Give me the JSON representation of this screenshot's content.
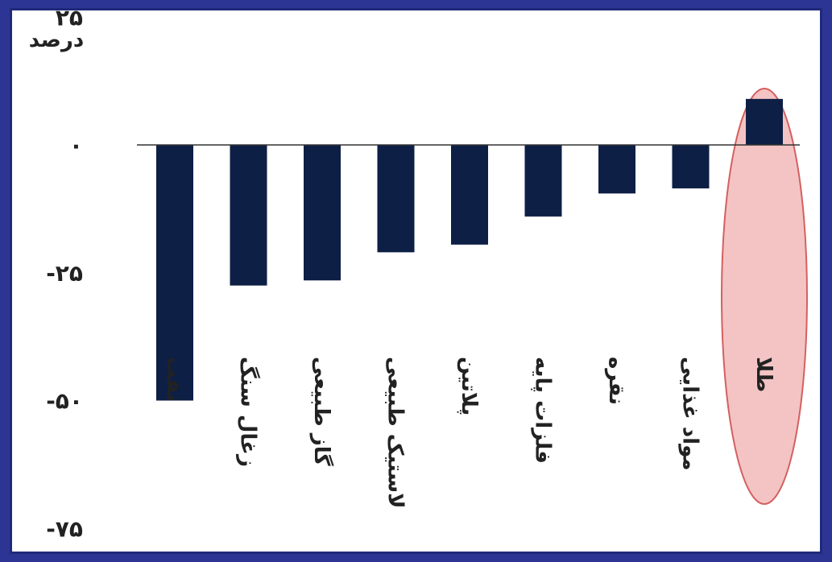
{
  "chart_data": {
    "type": "bar",
    "ylabel": "درصد",
    "ylim": [
      -75,
      25
    ],
    "yticks": [
      25,
      0,
      -25,
      -50,
      -75
    ],
    "ytick_labels": [
      "۲۵",
      "۰",
      "-۲۵",
      "-۵۰",
      "-۷۵"
    ],
    "categories": [
      "نفت",
      "زغال سنگ",
      "گاز طبیعی",
      "لاستیک طبیعی",
      "پلاتین",
      "فلزات پایه",
      "نقره",
      "مواد غذایی",
      "طلا"
    ],
    "values": [
      -50,
      -27.5,
      -26.5,
      -21,
      -19.5,
      -14,
      -9.5,
      -8.5,
      9
    ],
    "highlight": "طلا",
    "colors": {
      "bar": "#0e1f45",
      "highlight_fill": "#f4c4c4",
      "highlight_stroke": "#d46060",
      "background": "#2c3594"
    },
    "grid": false,
    "legend": "none"
  }
}
